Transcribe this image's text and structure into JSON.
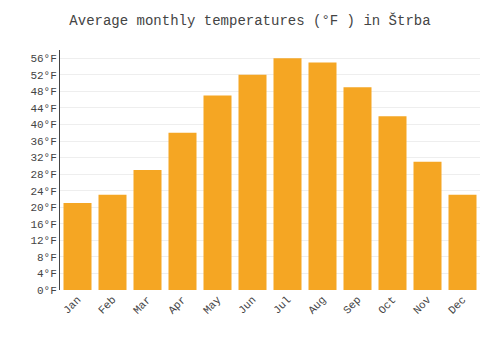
{
  "chart_data": {
    "type": "bar",
    "title": "Average monthly temperatures (°F ) in Štrba",
    "categories": [
      "Jan",
      "Feb",
      "Mar",
      "Apr",
      "May",
      "Jun",
      "Jul",
      "Aug",
      "Sep",
      "Oct",
      "Nov",
      "Dec"
    ],
    "values": [
      21,
      23,
      29,
      38,
      47,
      52,
      56,
      55,
      49,
      42,
      31,
      23
    ],
    "color": "#F5A623",
    "ylim": [
      0,
      58
    ],
    "yticks": [
      {
        "value": 0,
        "label": "0°F"
      },
      {
        "value": 4,
        "label": "4°F"
      },
      {
        "value": 8,
        "label": "8°F"
      },
      {
        "value": 12,
        "label": "12°F"
      },
      {
        "value": 16,
        "label": "16°F"
      },
      {
        "value": 20,
        "label": "20°F"
      },
      {
        "value": 24,
        "label": "24°F"
      },
      {
        "value": 28,
        "label": "28°F"
      },
      {
        "value": 32,
        "label": "32°F"
      },
      {
        "value": 36,
        "label": "36°F"
      },
      {
        "value": 40,
        "label": "40°F"
      },
      {
        "value": 44,
        "label": "44°F"
      },
      {
        "value": 48,
        "label": "48°F"
      },
      {
        "value": 52,
        "label": "52°F"
      },
      {
        "value": 56,
        "label": "56°F"
      }
    ],
    "grid": true
  }
}
